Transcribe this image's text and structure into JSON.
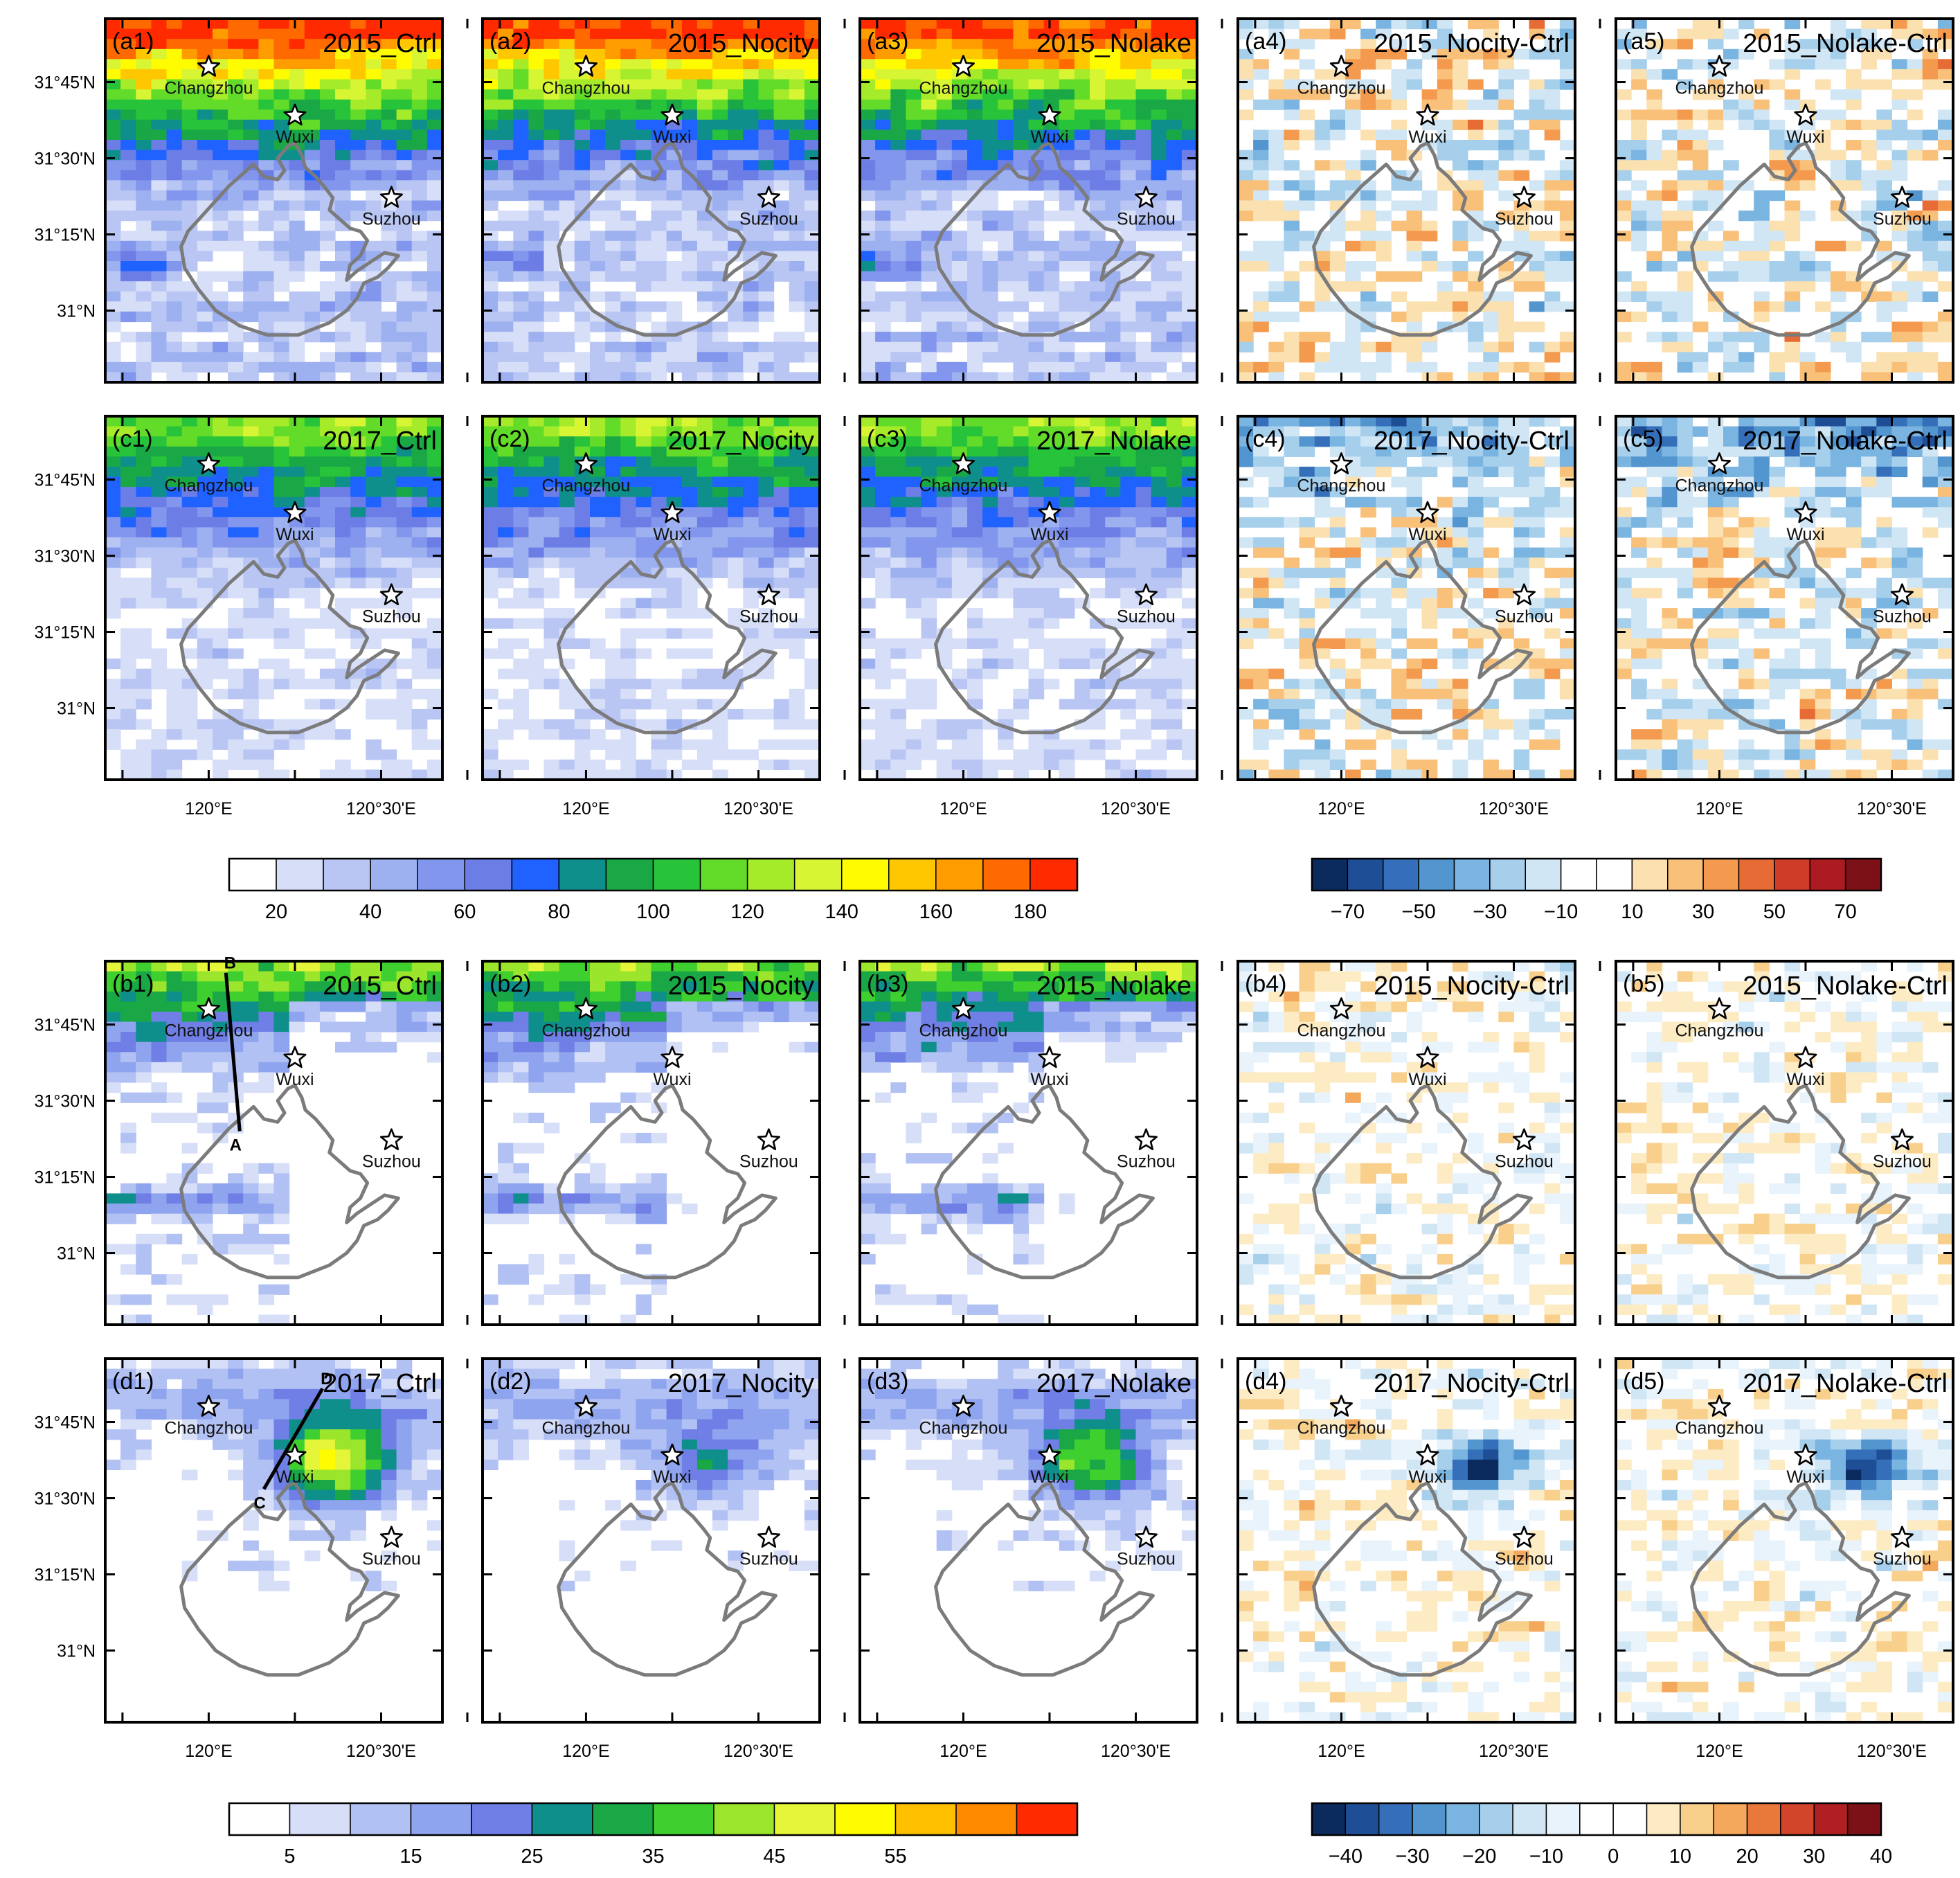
{
  "figure": {
    "lat_labels": [
      "31°45'N",
      "31°30'N",
      "31°15'N",
      "31°N"
    ],
    "lon_labels": [
      "120°E",
      "120°30'E"
    ],
    "city_names": [
      "Changzhou",
      "Wuxi",
      "Suzhou"
    ]
  },
  "chart_data": {
    "type": "heatmap",
    "panel_grid": {
      "blocks": [
        "upper",
        "lower"
      ],
      "rows_per_block": 2,
      "columns": 5
    },
    "upper_block": {
      "rows": [
        {
          "letter": "a",
          "panels": [
            {
              "tag": "(a1)",
              "title": "2015_Ctrl",
              "kind": "field",
              "scheme": "a"
            },
            {
              "tag": "(a2)",
              "title": "2015_Nocity",
              "kind": "field",
              "scheme": "a"
            },
            {
              "tag": "(a3)",
              "title": "2015_Nolake",
              "kind": "field",
              "scheme": "a"
            },
            {
              "tag": "(a4)",
              "title": "2015_Nocity-Ctrl",
              "kind": "diff",
              "scheme": "a"
            },
            {
              "tag": "(a5)",
              "title": "2015_Nolake-Ctrl",
              "kind": "diff",
              "scheme": "b"
            }
          ]
        },
        {
          "letter": "c",
          "panels": [
            {
              "tag": "(c1)",
              "title": "2017_Ctrl",
              "kind": "field",
              "scheme": "c"
            },
            {
              "tag": "(c2)",
              "title": "2017_Nocity",
              "kind": "field",
              "scheme": "d"
            },
            {
              "tag": "(c3)",
              "title": "2017_Nolake",
              "kind": "field",
              "scheme": "d"
            },
            {
              "tag": "(c4)",
              "title": "2017_Nocity-Ctrl",
              "kind": "diff",
              "scheme": "c"
            },
            {
              "tag": "(c5)",
              "title": "2017_Nolake-Ctrl",
              "kind": "diff",
              "scheme": "d"
            }
          ]
        }
      ],
      "colorbar_field": {
        "colors": [
          "#ffffff",
          "#d6def8",
          "#b9c6f4",
          "#9db0f0",
          "#8196ec",
          "#6c7ee6",
          "#1f62ff",
          "#0f8f8c",
          "#1aa847",
          "#27c33a",
          "#62dc29",
          "#a6eb2a",
          "#d8f534",
          "#fffb00",
          "#ffc700",
          "#ff9c00",
          "#ff6a00",
          "#ff2a00"
        ],
        "tick_labels": [
          "20",
          "40",
          "60",
          "80",
          "100",
          "120",
          "140",
          "160",
          "180"
        ]
      },
      "colorbar_diff": {
        "colors": [
          "#0b2a5e",
          "#1e4f96",
          "#356fb9",
          "#5295cf",
          "#7ab4e1",
          "#a6cfec",
          "#d0e6f5",
          "#ffffff",
          "#ffffff",
          "#fbe0b0",
          "#f9c07a",
          "#f49a4f",
          "#e76b34",
          "#cf3d28",
          "#ad1b22",
          "#7c1218"
        ],
        "tick_labels": [
          "−70",
          "−50",
          "−30",
          "−10",
          "10",
          "30",
          "50",
          "70"
        ]
      }
    },
    "lower_block": {
      "rows": [
        {
          "letter": "b",
          "panels": [
            {
              "tag": "(b1)",
              "title": "2015_Ctrl",
              "kind": "field",
              "scheme": "e",
              "transect": {
                "start": "A",
                "end": "B"
              }
            },
            {
              "tag": "(b2)",
              "title": "2015_Nocity",
              "kind": "field",
              "scheme": "f"
            },
            {
              "tag": "(b3)",
              "title": "2015_Nolake",
              "kind": "field",
              "scheme": "g"
            },
            {
              "tag": "(b4)",
              "title": "2015_Nocity-Ctrl",
              "kind": "diff",
              "scheme": "e"
            },
            {
              "tag": "(b5)",
              "title": "2015_Nolake-Ctrl",
              "kind": "diff",
              "scheme": "f"
            }
          ]
        },
        {
          "letter": "d",
          "panels": [
            {
              "tag": "(d1)",
              "title": "2017_Ctrl",
              "kind": "field",
              "scheme": "h",
              "transect": {
                "start": "C",
                "end": "D"
              }
            },
            {
              "tag": "(d2)",
              "title": "2017_Nocity",
              "kind": "field",
              "scheme": "i"
            },
            {
              "tag": "(d3)",
              "title": "2017_Nolake",
              "kind": "field",
              "scheme": "j"
            },
            {
              "tag": "(d4)",
              "title": "2017_Nocity-Ctrl",
              "kind": "diff",
              "scheme": "h"
            },
            {
              "tag": "(d5)",
              "title": "2017_Nolake-Ctrl",
              "kind": "diff",
              "scheme": "i"
            }
          ]
        }
      ],
      "colorbar_field": {
        "colors": [
          "#ffffff",
          "#d6def8",
          "#b2c1f3",
          "#8fa4ee",
          "#6f7fe6",
          "#0f8f8c",
          "#1aa847",
          "#3fd030",
          "#9be52d",
          "#e4f53a",
          "#fffb00",
          "#ffc000",
          "#ff8a00",
          "#ff2a00"
        ],
        "tick_labels": [
          "5",
          "15",
          "25",
          "35",
          "45",
          "55"
        ]
      },
      "colorbar_diff": {
        "colors": [
          "#0b2a5e",
          "#1e4f96",
          "#356fb9",
          "#5295cf",
          "#7ab4e1",
          "#a6cfec",
          "#d0e6f5",
          "#e8f3fb",
          "#ffffff",
          "#ffffff",
          "#fdebc4",
          "#f9cf8c",
          "#f4a85c",
          "#e8793b",
          "#d2452b",
          "#b01f22",
          "#7c1218"
        ],
        "tick_labels": [
          "−40",
          "−30",
          "−20",
          "−10",
          "0",
          "10",
          "20",
          "30",
          "40"
        ]
      }
    }
  }
}
